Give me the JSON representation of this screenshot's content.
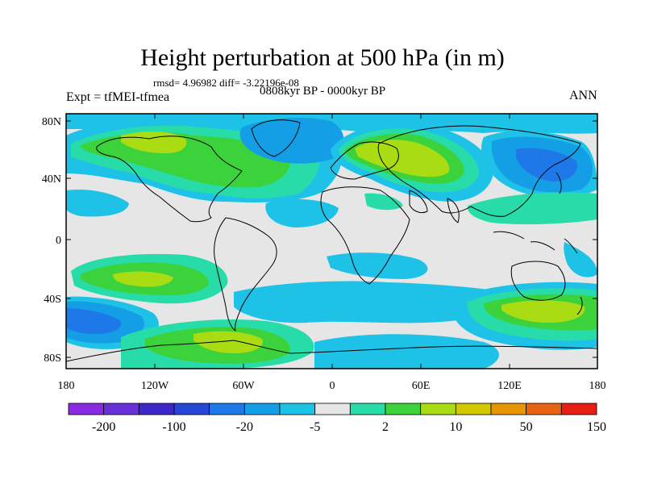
{
  "title": "Height perturbation at 500 hPa (in m)",
  "stats": "rmsd= 4.96982 diff= -3.22196e-08",
  "experiment": "Expt = tfMEI-tfmea",
  "period": "0808kyr BP - 0000kyr BP",
  "season": "ANN",
  "axes": {
    "lat_ticks": [
      "80N",
      "40N",
      "0",
      "40S",
      "80S"
    ],
    "lon_ticks": [
      "180",
      "120W",
      "60W",
      "0",
      "60E",
      "120E",
      "180"
    ]
  },
  "colorbar": {
    "colors": [
      "#8a2be2",
      "#6a30d8",
      "#3c28c8",
      "#2746d8",
      "#1f78e8",
      "#149ee6",
      "#1ec2e6",
      "#e6e6e6",
      "#28dcaa",
      "#3cd23c",
      "#aadc14",
      "#d2c800",
      "#e69600",
      "#e66414",
      "#e61e14"
    ],
    "labels": [
      "-200",
      "-100",
      "-20",
      "-5",
      "2",
      "10",
      "50",
      "150"
    ]
  },
  "palette": {
    "background": "#e6e6e6",
    "light_blue": "#1ec2e6",
    "blue": "#149ee6",
    "dark_blue": "#1f78e8",
    "teal": "#28dcaa",
    "green": "#3cd23c",
    "yellow_green": "#aadc14"
  }
}
